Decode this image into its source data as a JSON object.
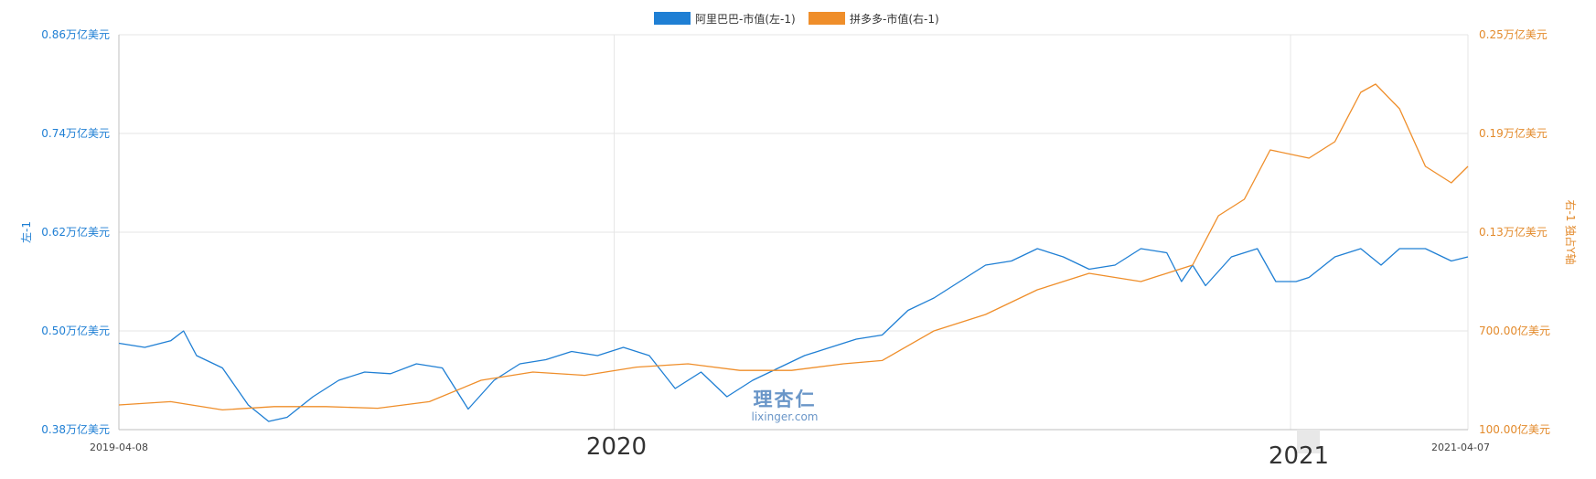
{
  "colors": {
    "left_series": "#1f7fd4",
    "right_series": "#ef8e2a",
    "grid": "#e6e6e6",
    "axis": "#bfbfbf"
  },
  "legend": {
    "left": "阿里巴巴-市值(左-1)",
    "right": "拼多多-市值(右-1)"
  },
  "watermark": {
    "cn": "理杏仁",
    "en": "lixinger.com"
  },
  "chart_data": {
    "type": "line",
    "x_start": "2019-04-08",
    "x_end": "2021-04-07",
    "x_tick_labels": {
      "start": "2019-04-08",
      "y2020": "2020",
      "y2021": "2021",
      "end": "2021-04-07"
    },
    "grid": true,
    "legend_position": "top-center",
    "left_axis": {
      "title": "左-1",
      "range": [
        0.38,
        0.86
      ],
      "unit": "万亿美元",
      "ticks": [
        0.38,
        0.5,
        0.62,
        0.74,
        0.86
      ],
      "tick_labels": [
        "0.38万亿美元",
        "0.50万亿美元",
        "0.62万亿美元",
        "0.74万亿美元",
        "0.86万亿美元"
      ]
    },
    "right_axis": {
      "title": "右-1 独占Y轴",
      "range": [
        100,
        2500
      ],
      "unit": "亿美元",
      "ticks": [
        100,
        700,
        1300,
        1900,
        2500
      ],
      "tick_labels": [
        "100.00亿美元",
        "700.00亿美元",
        "0.13万亿美元",
        "0.19万亿美元",
        "0.25万亿美元"
      ]
    },
    "series": [
      {
        "name": "阿里巴巴-市值(左-1)",
        "axis": "left",
        "points": [
          [
            "2019-04-08",
            0.485
          ],
          [
            "2019-04-22",
            0.48
          ],
          [
            "2019-05-06",
            0.488
          ],
          [
            "2019-05-13",
            0.5
          ],
          [
            "2019-05-20",
            0.47
          ],
          [
            "2019-06-03",
            0.455
          ],
          [
            "2019-06-17",
            0.41
          ],
          [
            "2019-06-28",
            0.39
          ],
          [
            "2019-07-08",
            0.395
          ],
          [
            "2019-07-22",
            0.42
          ],
          [
            "2019-08-05",
            0.44
          ],
          [
            "2019-08-19",
            0.45
          ],
          [
            "2019-09-02",
            0.448
          ],
          [
            "2019-09-16",
            0.46
          ],
          [
            "2019-09-30",
            0.455
          ],
          [
            "2019-10-14",
            0.405
          ],
          [
            "2019-10-28",
            0.44
          ],
          [
            "2019-11-11",
            0.46
          ],
          [
            "2019-11-25",
            0.465
          ],
          [
            "2019-12-09",
            0.475
          ],
          [
            "2019-12-23",
            0.47
          ],
          [
            "2020-01-06",
            0.48
          ],
          [
            "2020-01-20",
            0.47
          ],
          [
            "2020-02-03",
            0.43
          ],
          [
            "2020-02-17",
            0.45
          ],
          [
            "2020-03-02",
            0.42
          ],
          [
            "2020-03-16",
            0.44
          ],
          [
            "2020-03-30",
            0.455
          ],
          [
            "2020-04-13",
            0.47
          ],
          [
            "2020-04-27",
            0.48
          ],
          [
            "2020-05-11",
            0.49
          ],
          [
            "2020-05-25",
            0.495
          ],
          [
            "2020-06-08",
            0.525
          ],
          [
            "2020-06-22",
            0.54
          ],
          [
            "2020-07-06",
            0.56
          ],
          [
            "2020-07-20",
            0.58
          ],
          [
            "2020-08-03",
            0.585
          ],
          [
            "2020-08-17",
            0.6
          ],
          [
            "2020-08-31",
            0.59
          ],
          [
            "2020-09-14",
            0.575
          ],
          [
            "2020-09-28",
            0.58
          ],
          [
            "2020-10-12",
            0.6
          ],
          [
            "2020-10-26",
            0.595
          ],
          [
            "2020-11-03",
            0.56
          ],
          [
            "2020-11-09",
            0.58
          ],
          [
            "2020-11-16",
            0.555
          ],
          [
            "2020-11-30",
            0.59
          ],
          [
            "2020-12-14",
            0.6
          ],
          [
            "2020-12-24",
            0.56
          ],
          [
            "2021-01-04",
            0.56
          ],
          [
            "2021-01-11",
            0.565
          ],
          [
            "2021-01-25",
            0.59
          ],
          [
            "2021-02-08",
            0.6
          ],
          [
            "2021-02-19",
            0.58
          ],
          [
            "2021-03-01",
            0.6
          ],
          [
            "2021-03-15",
            0.6
          ],
          [
            "2021-03-29",
            0.585
          ],
          [
            "2021-04-07",
            0.59
          ]
        ]
      },
      {
        "name": "拼多多-市值(右-1)",
        "axis": "right",
        "points": [
          [
            "2019-04-08",
            250
          ],
          [
            "2019-05-06",
            270
          ],
          [
            "2019-06-03",
            220
          ],
          [
            "2019-07-01",
            240
          ],
          [
            "2019-07-29",
            240
          ],
          [
            "2019-08-26",
            230
          ],
          [
            "2019-09-23",
            270
          ],
          [
            "2019-10-21",
            400
          ],
          [
            "2019-11-18",
            450
          ],
          [
            "2019-12-16",
            430
          ],
          [
            "2020-01-13",
            480
          ],
          [
            "2020-02-10",
            500
          ],
          [
            "2020-03-09",
            460
          ],
          [
            "2020-04-06",
            460
          ],
          [
            "2020-05-04",
            500
          ],
          [
            "2020-05-25",
            520
          ],
          [
            "2020-06-22",
            700
          ],
          [
            "2020-07-20",
            800
          ],
          [
            "2020-08-17",
            950
          ],
          [
            "2020-09-14",
            1050
          ],
          [
            "2020-10-12",
            1000
          ],
          [
            "2020-11-09",
            1100
          ],
          [
            "2020-11-23",
            1400
          ],
          [
            "2020-12-07",
            1500
          ],
          [
            "2020-12-21",
            1800
          ],
          [
            "2021-01-11",
            1750
          ],
          [
            "2021-01-25",
            1850
          ],
          [
            "2021-02-08",
            2150
          ],
          [
            "2021-02-16",
            2200
          ],
          [
            "2021-03-01",
            2050
          ],
          [
            "2021-03-15",
            1700
          ],
          [
            "2021-03-29",
            1600
          ],
          [
            "2021-04-07",
            1700
          ]
        ]
      }
    ]
  }
}
